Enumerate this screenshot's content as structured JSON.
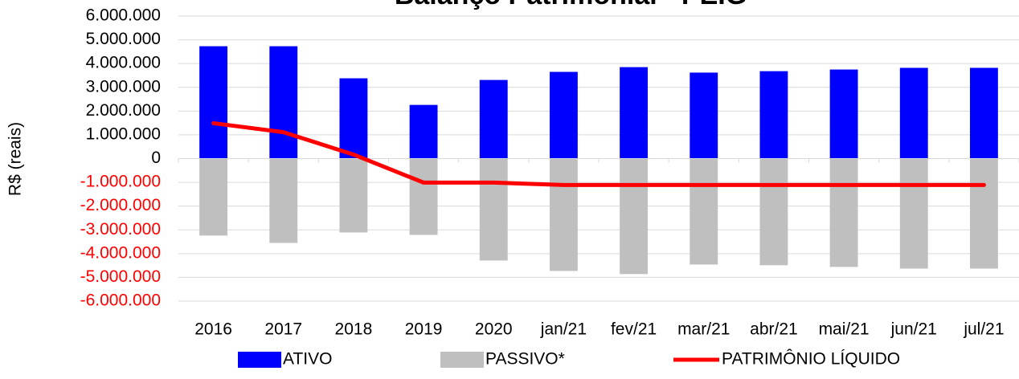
{
  "chart_data": {
    "type": "bar_line",
    "title": "Balanço Patrimonial - PEIG",
    "y_label": "R$ (reais)",
    "categories": [
      "2016",
      "2017",
      "2018",
      "2019",
      "2020",
      "jan/21",
      "fev/21",
      "mar/21",
      "abr/21",
      "mai/21",
      "jun/21",
      "jul/21"
    ],
    "series": [
      {
        "name": "ATIVO",
        "type": "bar",
        "color": "#0000ff",
        "values": [
          4730000,
          4730000,
          3380000,
          2260000,
          3310000,
          3650000,
          3850000,
          3620000,
          3680000,
          3750000,
          3820000,
          3820000
        ]
      },
      {
        "name": "PASSIVO*",
        "type": "bar",
        "color": "#bfbfbf",
        "values": [
          -3240000,
          -3550000,
          -3110000,
          -3210000,
          -4290000,
          -4730000,
          -4860000,
          -4460000,
          -4490000,
          -4560000,
          -4630000,
          -4630000
        ]
      },
      {
        "name": "PATRIMÔNIO LÍQUIDO",
        "type": "line",
        "color": "#ff0000",
        "values": [
          1490000,
          1110000,
          170000,
          -1010000,
          -1010000,
          -1110000,
          -1110000,
          -1110000,
          -1110000,
          -1110000,
          -1110000,
          -1110000
        ]
      }
    ],
    "ylim": [
      -6000000,
      6000000
    ],
    "yticks": [
      {
        "value": -6000000,
        "label": "-6.000.000"
      },
      {
        "value": -5000000,
        "label": "-5.000.000"
      },
      {
        "value": -4000000,
        "label": "-4.000.000"
      },
      {
        "value": -3000000,
        "label": "-3.000.000"
      },
      {
        "value": -2000000,
        "label": "-2.000.000"
      },
      {
        "value": -1000000,
        "label": "-1.000.000"
      },
      0,
      {
        "value": 1000000,
        "label": "1.000.000"
      },
      {
        "value": 2000000,
        "label": "2.000.000"
      },
      {
        "value": 3000000,
        "label": "3.000.000"
      },
      {
        "value": 4000000,
        "label": "4.000.000"
      },
      {
        "value": 5000000,
        "label": "5.000.000"
      },
      {
        "value": 6000000,
        "label": "6.000.000"
      }
    ],
    "negative_tick_color": "#ff0000",
    "grid": true,
    "legend": "bottom"
  }
}
